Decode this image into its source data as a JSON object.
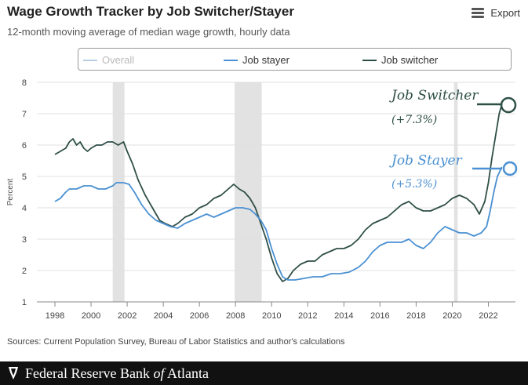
{
  "header": {
    "title": "Wage Growth Tracker by Job Switcher/Stayer",
    "subtitle": "12-month moving average of median wage growth, hourly data",
    "export_label": "Export",
    "export_icon": "hamburger-menu-icon"
  },
  "legend": {
    "items": [
      {
        "label": "Overall",
        "color": "#b8cde2",
        "state": "hidden"
      },
      {
        "label": "Job stayer",
        "color": "#4a90d2",
        "state": "visible"
      },
      {
        "label": "Job switcher",
        "color": "#2e4f47",
        "state": "visible"
      }
    ]
  },
  "annotations": {
    "switcher_name": "Job Switcher",
    "switcher_value": "(+7.3%)",
    "stayer_name": "Job Stayer",
    "stayer_value": "(+5.3%)"
  },
  "source": "Sources: Current Population Survey, Bureau of Labor Statistics and author's calculations",
  "footer": {
    "org_name_prefix": "Federal Reserve Bank ",
    "org_name_of": "of",
    "org_name_suffix": " Atlanta"
  },
  "chart_data": {
    "type": "line",
    "ylabel": "Percent",
    "xlabel": "",
    "ylim": [
      1,
      8
    ],
    "yticks": [
      1,
      2,
      3,
      4,
      5,
      6,
      7,
      8
    ],
    "xlim": [
      1997.0,
      2023.5
    ],
    "xticks": [
      1998,
      2000,
      2002,
      2004,
      2006,
      2008,
      2010,
      2012,
      2014,
      2016,
      2018,
      2020,
      2022
    ],
    "grid": "horizontal",
    "legend_position": "top",
    "recessions": [
      [
        2001.2,
        2001.85
      ],
      [
        2007.95,
        2009.45
      ],
      [
        2020.1,
        2020.3
      ]
    ],
    "series": [
      {
        "name": "Job switcher",
        "color": "#2e4f47",
        "points": [
          [
            1998.0,
            5.7
          ],
          [
            1998.3,
            5.8
          ],
          [
            1998.6,
            5.9
          ],
          [
            1998.8,
            6.1
          ],
          [
            1999.0,
            6.2
          ],
          [
            1999.2,
            6.0
          ],
          [
            1999.4,
            6.1
          ],
          [
            1999.6,
            5.9
          ],
          [
            1999.8,
            5.8
          ],
          [
            2000.0,
            5.9
          ],
          [
            2000.3,
            6.0
          ],
          [
            2000.6,
            6.0
          ],
          [
            2000.9,
            6.1
          ],
          [
            2001.2,
            6.1
          ],
          [
            2001.5,
            6.0
          ],
          [
            2001.8,
            6.1
          ],
          [
            2002.0,
            5.8
          ],
          [
            2002.3,
            5.4
          ],
          [
            2002.6,
            4.9
          ],
          [
            2003.0,
            4.4
          ],
          [
            2003.4,
            4.0
          ],
          [
            2003.8,
            3.6
          ],
          [
            2004.1,
            3.5
          ],
          [
            2004.5,
            3.4
          ],
          [
            2004.8,
            3.5
          ],
          [
            2005.2,
            3.7
          ],
          [
            2005.6,
            3.8
          ],
          [
            2006.0,
            4.0
          ],
          [
            2006.4,
            4.1
          ],
          [
            2006.8,
            4.3
          ],
          [
            2007.2,
            4.4
          ],
          [
            2007.6,
            4.6
          ],
          [
            2007.9,
            4.75
          ],
          [
            2008.2,
            4.6
          ],
          [
            2008.5,
            4.5
          ],
          [
            2008.8,
            4.3
          ],
          [
            2009.1,
            4.0
          ],
          [
            2009.4,
            3.5
          ],
          [
            2009.7,
            3.0
          ],
          [
            2010.0,
            2.4
          ],
          [
            2010.3,
            1.9
          ],
          [
            2010.6,
            1.65
          ],
          [
            2010.9,
            1.75
          ],
          [
            2011.2,
            2.0
          ],
          [
            2011.6,
            2.2
          ],
          [
            2012.0,
            2.3
          ],
          [
            2012.4,
            2.3
          ],
          [
            2012.8,
            2.5
          ],
          [
            2013.2,
            2.6
          ],
          [
            2013.6,
            2.7
          ],
          [
            2014.0,
            2.7
          ],
          [
            2014.4,
            2.8
          ],
          [
            2014.8,
            3.0
          ],
          [
            2015.2,
            3.3
          ],
          [
            2015.6,
            3.5
          ],
          [
            2016.0,
            3.6
          ],
          [
            2016.4,
            3.7
          ],
          [
            2016.8,
            3.9
          ],
          [
            2017.2,
            4.1
          ],
          [
            2017.6,
            4.2
          ],
          [
            2018.0,
            4.0
          ],
          [
            2018.4,
            3.9
          ],
          [
            2018.8,
            3.9
          ],
          [
            2019.2,
            4.0
          ],
          [
            2019.6,
            4.1
          ],
          [
            2020.0,
            4.3
          ],
          [
            2020.4,
            4.4
          ],
          [
            2020.8,
            4.3
          ],
          [
            2021.2,
            4.1
          ],
          [
            2021.5,
            3.8
          ],
          [
            2021.8,
            4.2
          ],
          [
            2022.0,
            4.8
          ],
          [
            2022.2,
            5.6
          ],
          [
            2022.4,
            6.3
          ],
          [
            2022.6,
            7.0
          ],
          [
            2022.75,
            7.3
          ]
        ]
      },
      {
        "name": "Job stayer",
        "color": "#4a90d2",
        "points": [
          [
            1998.0,
            4.2
          ],
          [
            1998.3,
            4.3
          ],
          [
            1998.6,
            4.5
          ],
          [
            1998.8,
            4.6
          ],
          [
            1999.2,
            4.6
          ],
          [
            1999.6,
            4.7
          ],
          [
            2000.0,
            4.7
          ],
          [
            2000.4,
            4.6
          ],
          [
            2000.8,
            4.6
          ],
          [
            2001.2,
            4.7
          ],
          [
            2001.4,
            4.8
          ],
          [
            2001.8,
            4.8
          ],
          [
            2002.1,
            4.75
          ],
          [
            2002.4,
            4.5
          ],
          [
            2002.8,
            4.1
          ],
          [
            2003.2,
            3.8
          ],
          [
            2003.6,
            3.6
          ],
          [
            2004.0,
            3.5
          ],
          [
            2004.4,
            3.4
          ],
          [
            2004.8,
            3.35
          ],
          [
            2005.2,
            3.5
          ],
          [
            2005.6,
            3.6
          ],
          [
            2006.0,
            3.7
          ],
          [
            2006.4,
            3.8
          ],
          [
            2006.8,
            3.7
          ],
          [
            2007.2,
            3.8
          ],
          [
            2007.6,
            3.9
          ],
          [
            2008.0,
            4.0
          ],
          [
            2008.4,
            4.0
          ],
          [
            2008.8,
            3.95
          ],
          [
            2009.1,
            3.8
          ],
          [
            2009.4,
            3.6
          ],
          [
            2009.7,
            3.3
          ],
          [
            2010.0,
            2.7
          ],
          [
            2010.3,
            2.2
          ],
          [
            2010.6,
            1.8
          ],
          [
            2010.9,
            1.7
          ],
          [
            2011.3,
            1.7
          ],
          [
            2011.8,
            1.75
          ],
          [
            2012.3,
            1.8
          ],
          [
            2012.8,
            1.8
          ],
          [
            2013.3,
            1.9
          ],
          [
            2013.8,
            1.9
          ],
          [
            2014.3,
            1.95
          ],
          [
            2014.8,
            2.1
          ],
          [
            2015.2,
            2.3
          ],
          [
            2015.6,
            2.6
          ],
          [
            2016.0,
            2.8
          ],
          [
            2016.4,
            2.9
          ],
          [
            2016.8,
            2.9
          ],
          [
            2017.2,
            2.9
          ],
          [
            2017.6,
            3.0
          ],
          [
            2018.0,
            2.8
          ],
          [
            2018.4,
            2.7
          ],
          [
            2018.8,
            2.9
          ],
          [
            2019.2,
            3.2
          ],
          [
            2019.6,
            3.4
          ],
          [
            2020.0,
            3.3
          ],
          [
            2020.4,
            3.2
          ],
          [
            2020.8,
            3.2
          ],
          [
            2021.2,
            3.1
          ],
          [
            2021.6,
            3.2
          ],
          [
            2021.9,
            3.4
          ],
          [
            2022.1,
            3.9
          ],
          [
            2022.3,
            4.5
          ],
          [
            2022.5,
            5.0
          ],
          [
            2022.75,
            5.3
          ]
        ]
      }
    ]
  }
}
